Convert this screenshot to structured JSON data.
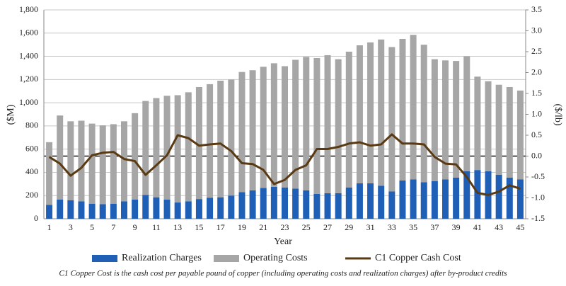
{
  "chart_data": {
    "type": "bar",
    "stacked": true,
    "x_label": "Year",
    "y_label": "($M)",
    "y2_label": "($/lb)",
    "note": "C1 Copper Cost is the cash cost per payable pound of copper (including operating costs and realization charges) after by-product credits",
    "categories": [
      1,
      null,
      3,
      null,
      5,
      null,
      7,
      null,
      9,
      null,
      11,
      null,
      13,
      null,
      15,
      null,
      17,
      null,
      19,
      null,
      21,
      null,
      23,
      null,
      25,
      null,
      27,
      null,
      29,
      null,
      31,
      null,
      33,
      null,
      35,
      null,
      37,
      null,
      39,
      null,
      41,
      null,
      43,
      null,
      45
    ],
    "series": [
      {
        "name": "Realization Charges",
        "type": "bar",
        "color": "#1f5fb5",
        "values": [
          120,
          165,
          160,
          150,
          130,
          125,
          130,
          150,
          165,
          205,
          185,
          165,
          140,
          150,
          170,
          180,
          185,
          200,
          230,
          245,
          265,
          275,
          270,
          260,
          245,
          215,
          220,
          220,
          270,
          305,
          305,
          285,
          235,
          330,
          340,
          315,
          325,
          340,
          355,
          410,
          420,
          410,
          380,
          355,
          340
        ]
      },
      {
        "name": "Operating Costs",
        "type": "bar",
        "color": "#a6a6a6",
        "values": [
          540,
          725,
          680,
          695,
          690,
          680,
          685,
          690,
          745,
          810,
          855,
          895,
          925,
          940,
          965,
          980,
          1005,
          1000,
          1035,
          1035,
          1045,
          1065,
          1045,
          1110,
          1150,
          1170,
          1190,
          1155,
          1170,
          1190,
          1215,
          1260,
          1245,
          1220,
          1245,
          1185,
          1050,
          1025,
          1005,
          990,
          805,
          775,
          775,
          780,
          765
        ]
      },
      {
        "name": "C1 Copper Cash Cost",
        "type": "line",
        "axis": "y2",
        "color": "#5a3a12",
        "values": [
          -0.02,
          -0.18,
          -0.47,
          -0.28,
          0.02,
          0.08,
          0.1,
          -0.07,
          -0.12,
          -0.45,
          -0.22,
          0.02,
          0.5,
          0.43,
          0.25,
          0.28,
          0.3,
          0.12,
          -0.17,
          -0.19,
          -0.33,
          -0.67,
          -0.57,
          -0.33,
          -0.22,
          0.17,
          0.17,
          0.22,
          0.3,
          0.33,
          0.25,
          0.28,
          0.52,
          0.3,
          0.3,
          0.28,
          -0.02,
          -0.18,
          -0.2,
          -0.5,
          -0.88,
          -0.93,
          -0.85,
          -0.7,
          -0.78
        ]
      }
    ],
    "ylim": [
      0,
      1800
    ],
    "yticks": [
      0,
      200,
      400,
      600,
      800,
      {
        "value": 1000,
        "label": "1,000"
      },
      {
        "value": 1200,
        "label": "1,200"
      },
      {
        "value": 1400,
        "label": "1,400"
      },
      {
        "value": 1600,
        "label": "1,600"
      },
      {
        "value": 1800,
        "label": "1,800"
      }
    ],
    "y2lim": [
      -1.5,
      3.5
    ],
    "y2ticks": [
      -1.5,
      {
        "value": -1,
        "label": "-1.0"
      },
      -0.5,
      {
        "value": 0,
        "label": "0.0"
      },
      0.5,
      {
        "value": 1,
        "label": "1.0"
      },
      1.5,
      {
        "value": 2,
        "label": "2.0"
      },
      2.5,
      {
        "value": 3,
        "label": "3.0"
      },
      3.5
    ],
    "grid": true,
    "legend": "bottom"
  }
}
